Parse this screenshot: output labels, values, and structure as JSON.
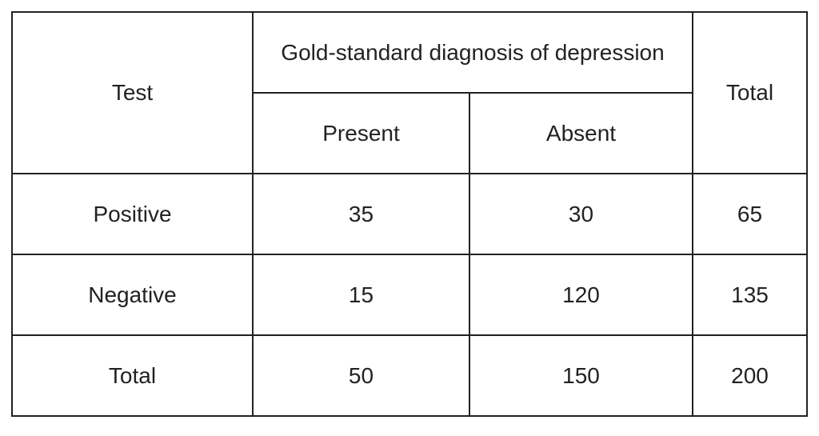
{
  "table": {
    "header": {
      "test": "Test",
      "group": "Gold-standard diagnosis of depression",
      "total": "Total",
      "subheaders": [
        "Present",
        "Absent"
      ]
    },
    "rows": [
      [
        "Positive",
        35,
        30,
        65
      ],
      [
        "Negative",
        15,
        120,
        135
      ],
      [
        "Total",
        50,
        150,
        200
      ]
    ]
  }
}
